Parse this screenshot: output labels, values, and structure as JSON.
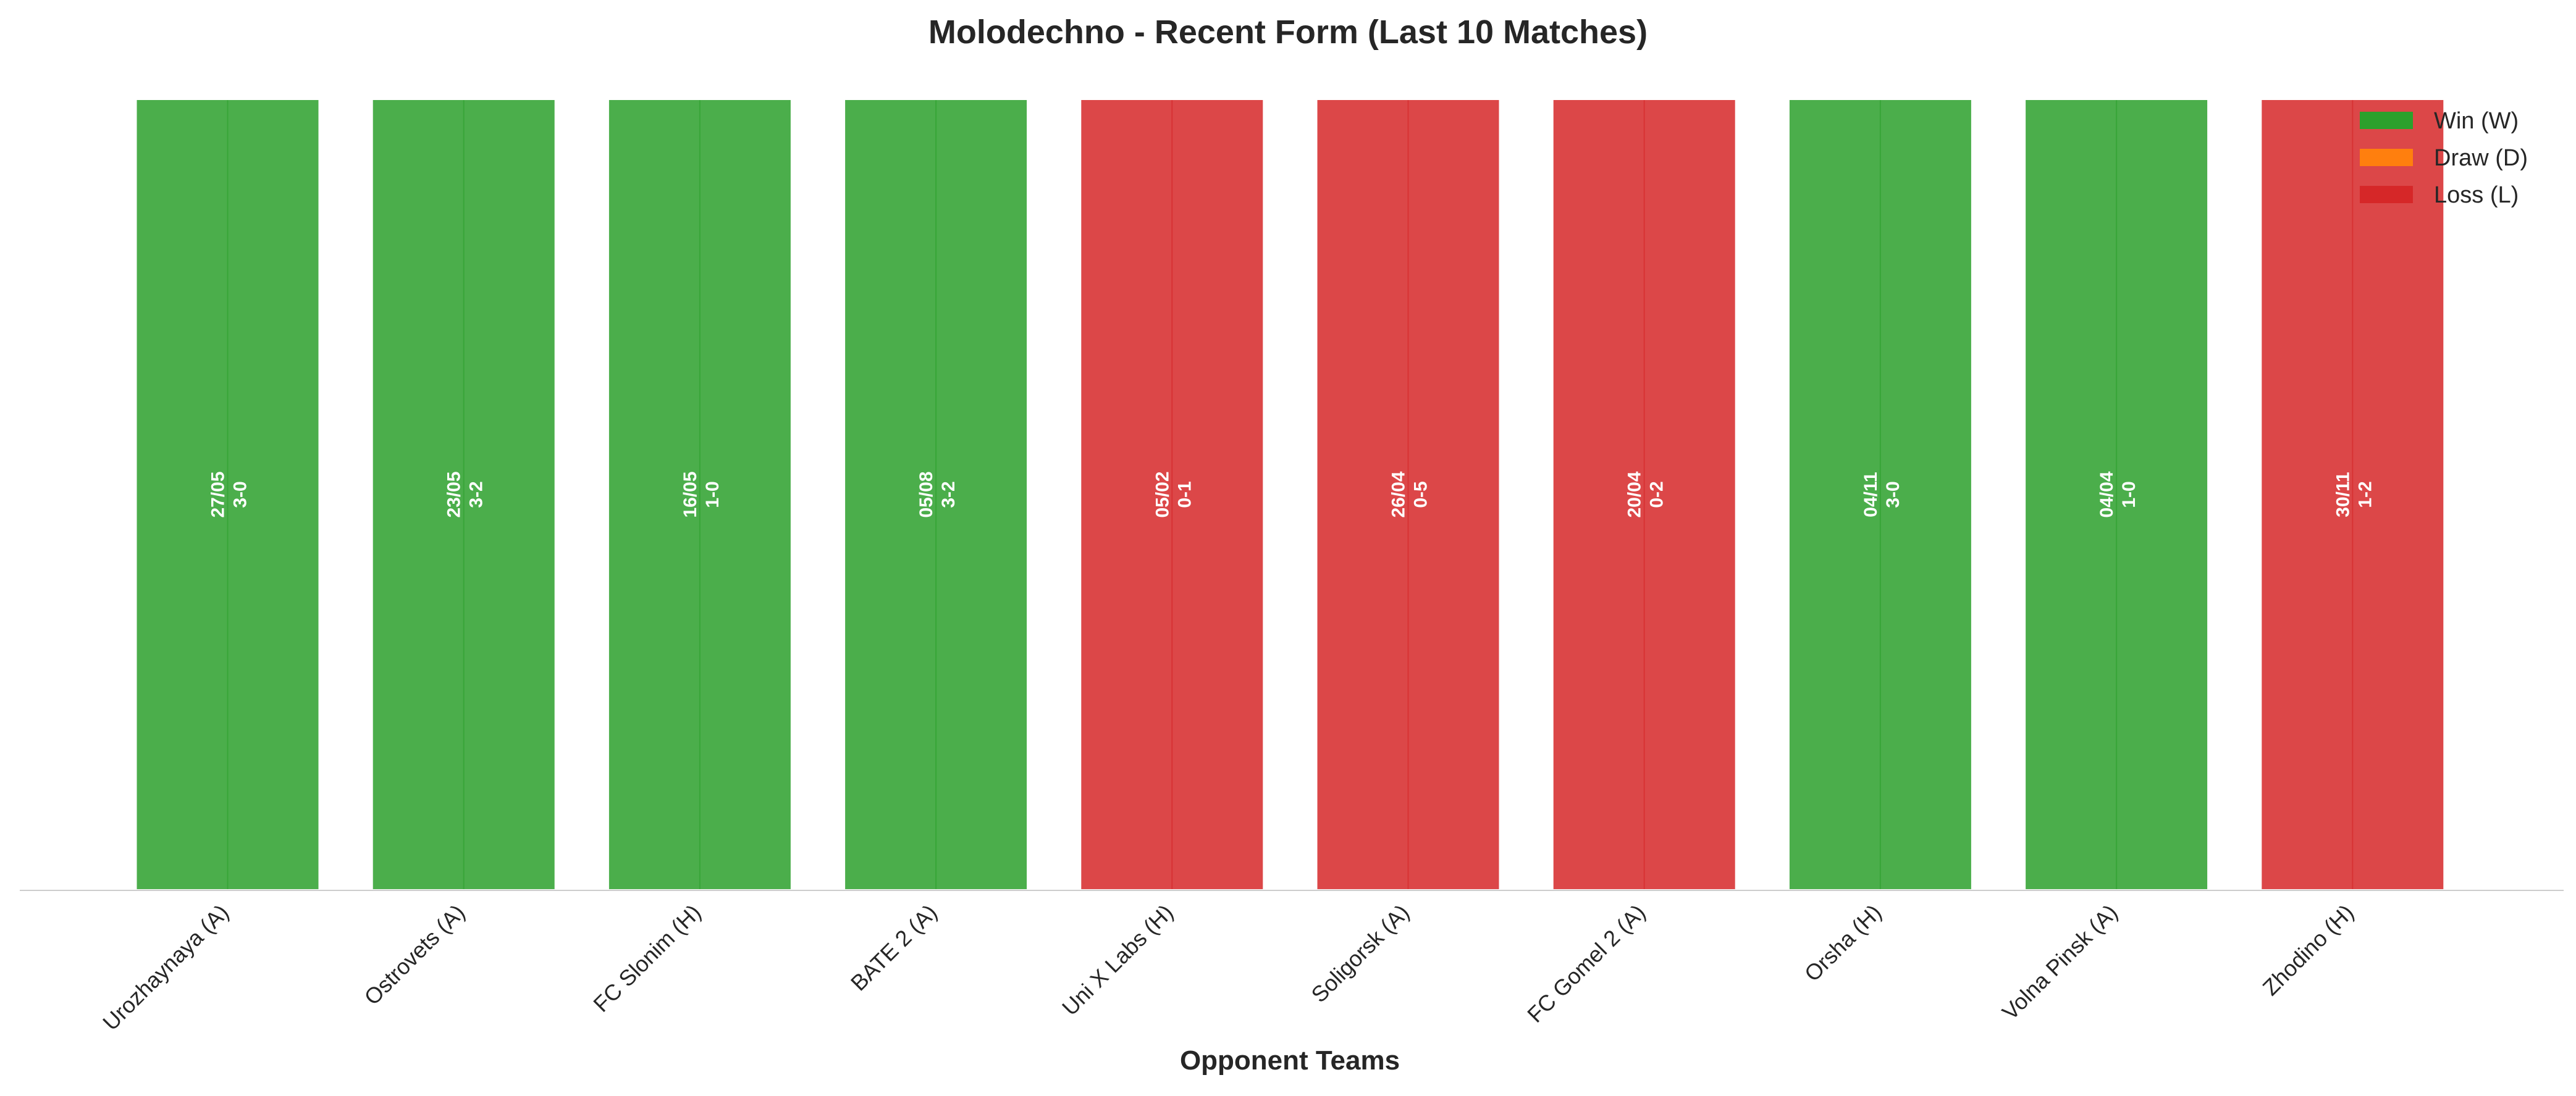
{
  "chart_data": {
    "type": "bar",
    "title": "Molodechno - Recent Form (Last 10 Matches)",
    "xlabel": "Opponent Teams",
    "ylabel": "",
    "grid": false,
    "legend_position": "top-right",
    "colors": {
      "W": "#2ca02c",
      "D": "#ff7f0e",
      "L": "#d62728"
    },
    "legend": [
      {
        "key": "W",
        "label": "Win (W)"
      },
      {
        "key": "D",
        "label": "Draw (D)"
      },
      {
        "key": "L",
        "label": "Loss (L)"
      }
    ],
    "matches": [
      {
        "opponent": "Urozhaynaya (A)",
        "date": "27/05",
        "score": "3-0",
        "result": "W",
        "value": 1
      },
      {
        "opponent": "Ostrovets (A)",
        "date": "23/05",
        "score": "3-2",
        "result": "W",
        "value": 1
      },
      {
        "opponent": "FC Slonim (H)",
        "date": "16/05",
        "score": "1-0",
        "result": "W",
        "value": 1
      },
      {
        "opponent": "BATE 2 (A)",
        "date": "05/08",
        "score": "3-2",
        "result": "W",
        "value": 1
      },
      {
        "opponent": "Uni X Labs (H)",
        "date": "05/02",
        "score": "0-1",
        "result": "L",
        "value": 1
      },
      {
        "opponent": "Soligorsk (A)",
        "date": "26/04",
        "score": "0-5",
        "result": "L",
        "value": 1
      },
      {
        "opponent": "FC Gomel 2 (A)",
        "date": "20/04",
        "score": "0-2",
        "result": "L",
        "value": 1
      },
      {
        "opponent": "Orsha (H)",
        "date": "04/11",
        "score": "3-0",
        "result": "W",
        "value": 1
      },
      {
        "opponent": "Volna Pinsk (A)",
        "date": "04/04",
        "score": "1-0",
        "result": "W",
        "value": 1
      },
      {
        "opponent": "Zhodino (H)",
        "date": "30/11",
        "score": "1-2",
        "result": "L",
        "value": 1
      }
    ]
  }
}
